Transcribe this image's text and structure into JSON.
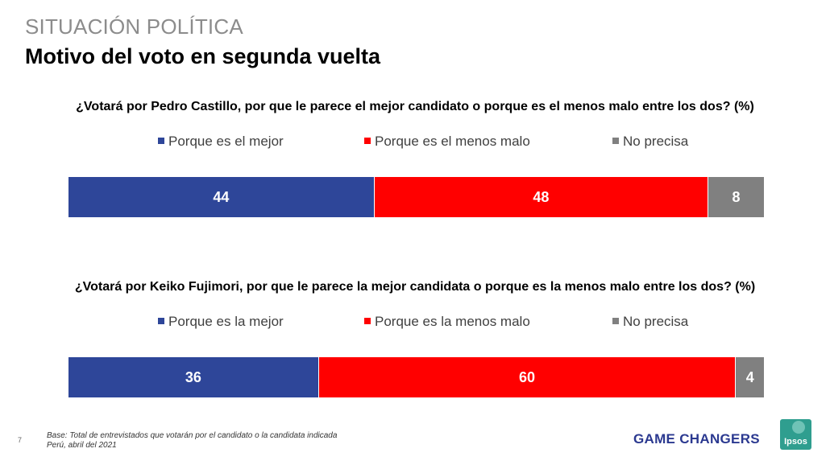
{
  "header": {
    "section": "SITUACIÓN POLÍTICA",
    "title": "Motivo del voto en segunda vuelta"
  },
  "colors": {
    "mejor": "#2e4699",
    "menos_malo": "#ff0000",
    "no_precisa": "#808080"
  },
  "chart_data": [
    {
      "type": "bar",
      "stacked": true,
      "orientation": "horizontal",
      "title": "¿Votará por Pedro Castillo, por que le parece el mejor candidato o porque es el menos malo entre los dos? (%)",
      "legend_position": "top",
      "series": [
        {
          "name": "Porque es el mejor",
          "value": 44,
          "color": "#2e4699"
        },
        {
          "name": "Porque es el menos malo",
          "value": 48,
          "color": "#ff0000"
        },
        {
          "name": "No precisa",
          "value": 8,
          "color": "#808080"
        }
      ]
    },
    {
      "type": "bar",
      "stacked": true,
      "orientation": "horizontal",
      "title": "¿Votará por Keiko Fujimori, por que le parece la mejor candidata o porque es la menos malo entre los dos? (%)",
      "legend_position": "top",
      "series": [
        {
          "name": "Porque es la mejor",
          "value": 36,
          "color": "#2e4699"
        },
        {
          "name": "Porque es la menos malo",
          "value": 60,
          "color": "#ff0000"
        },
        {
          "name": "No precisa",
          "value": 4,
          "color": "#808080"
        }
      ]
    }
  ],
  "footer": {
    "page_number": "7",
    "base_note": "Base: Total de entrevistados que votarán por el candidato o la candidata indicada",
    "place_date": "Perú, abril del 2021",
    "brand": "GAME CHANGERS",
    "logo_text": "Ipsos"
  }
}
